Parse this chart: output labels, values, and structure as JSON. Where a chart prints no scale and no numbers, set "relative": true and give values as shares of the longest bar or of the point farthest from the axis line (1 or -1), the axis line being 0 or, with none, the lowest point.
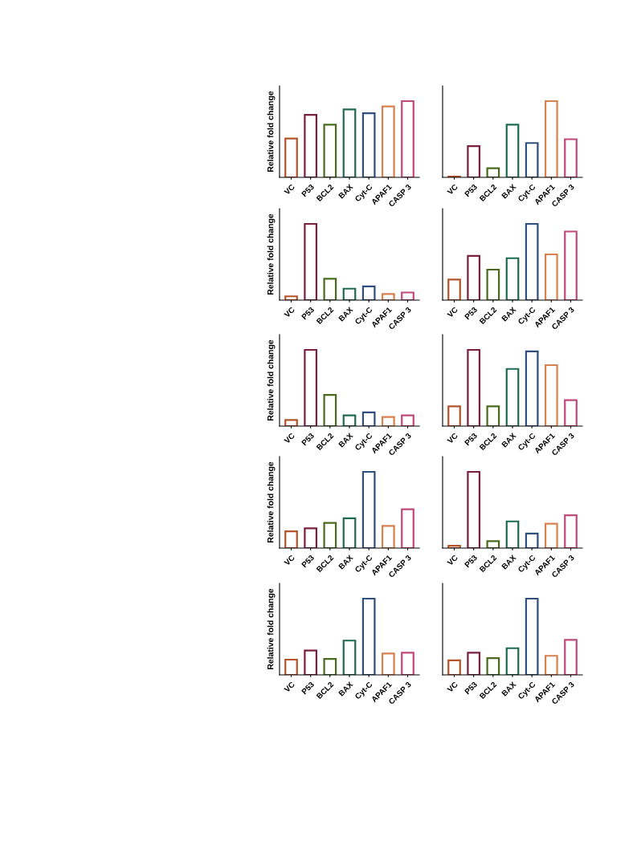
{
  "chart_data": [
    {
      "type": "bar",
      "relative": true,
      "ylabel": "Relative fold change",
      "categories": [
        "VC",
        "P53",
        "BCL2",
        "BAX",
        "Cyt-C",
        "APAF1",
        "CASP 3"
      ],
      "values": [
        0.51,
        0.82,
        0.69,
        0.89,
        0.84,
        0.93,
        1
      ],
      "colors": [
        "#b5542a",
        "#7b1f3f",
        "#4a6b1f",
        "#1f6b4f",
        "#2f4f7f",
        "#d9804f",
        "#c04a7a"
      ]
    },
    {
      "type": "bar",
      "relative": true,
      "categories": [
        "VC",
        "P53",
        "BCL2",
        "BAX",
        "Cyt-C",
        "APAF1",
        "CASP 3"
      ],
      "values": [
        0.01,
        0.41,
        0.12,
        0.69,
        0.45,
        1,
        0.5
      ],
      "colors": [
        "#b5542a",
        "#7b1f3f",
        "#4a6b1f",
        "#1f6b4f",
        "#2f4f7f",
        "#d9804f",
        "#c04a7a"
      ]
    },
    {
      "type": "bar",
      "relative": true,
      "ylabel": "Relative fold change",
      "categories": [
        "VC",
        "P53",
        "BCL2",
        "BAX",
        "Cyt-C",
        "APAF1",
        "CASP 3"
      ],
      "values": [
        0.05,
        1,
        0.28,
        0.15,
        0.18,
        0.08,
        0.1
      ],
      "colors": [
        "#b5542a",
        "#7b1f3f",
        "#4a6b1f",
        "#1f6b4f",
        "#2f4f7f",
        "#d9804f",
        "#c04a7a"
      ]
    },
    {
      "type": "bar",
      "relative": true,
      "categories": [
        "VC",
        "P53",
        "BCL2",
        "BAX",
        "Cyt-C",
        "APAF1",
        "CASP 3"
      ],
      "values": [
        0.27,
        0.58,
        0.4,
        0.55,
        1,
        0.6,
        0.9
      ],
      "colors": [
        "#b5542a",
        "#7b1f3f",
        "#4a6b1f",
        "#1f6b4f",
        "#2f4f7f",
        "#d9804f",
        "#c04a7a"
      ]
    },
    {
      "type": "bar",
      "relative": true,
      "ylabel": "Relative fold change",
      "categories": [
        "VC",
        "P53",
        "BCL2",
        "BAX",
        "Cyt-C",
        "APAF1",
        "CASP 3"
      ],
      "values": [
        0.08,
        1,
        0.41,
        0.14,
        0.18,
        0.12,
        0.14
      ],
      "colors": [
        "#b5542a",
        "#7b1f3f",
        "#4a6b1f",
        "#1f6b4f",
        "#2f4f7f",
        "#d9804f",
        "#c04a7a"
      ]
    },
    {
      "type": "bar",
      "relative": true,
      "categories": [
        "VC",
        "P53",
        "BCL2",
        "BAX",
        "Cyt-C",
        "APAF1",
        "CASP 3"
      ],
      "values": [
        0.26,
        1,
        0.26,
        0.75,
        0.98,
        0.8,
        0.34
      ],
      "colors": [
        "#b5542a",
        "#7b1f3f",
        "#4a6b1f",
        "#1f6b4f",
        "#2f4f7f",
        "#d9804f",
        "#c04a7a"
      ]
    },
    {
      "type": "bar",
      "relative": true,
      "ylabel": "Relative fold change",
      "categories": [
        "VC",
        "P53",
        "BCL2",
        "BAX",
        "Cyt-C",
        "APAF1",
        "CASP 3"
      ],
      "values": [
        0.22,
        0.26,
        0.33,
        0.39,
        1,
        0.29,
        0.51
      ],
      "colors": [
        "#b5542a",
        "#7b1f3f",
        "#4a6b1f",
        "#1f6b4f",
        "#2f4f7f",
        "#d9804f",
        "#c04a7a"
      ]
    },
    {
      "type": "bar",
      "relative": true,
      "categories": [
        "VC",
        "P53",
        "BCL2",
        "BAX",
        "Cyt-C",
        "APAF1",
        "CASP 3"
      ],
      "values": [
        0.03,
        1,
        0.09,
        0.35,
        0.19,
        0.32,
        0.43
      ],
      "colors": [
        "#b5542a",
        "#7b1f3f",
        "#4a6b1f",
        "#1f6b4f",
        "#2f4f7f",
        "#d9804f",
        "#c04a7a"
      ]
    },
    {
      "type": "bar",
      "relative": true,
      "ylabel": "Relative fold change",
      "categories": [
        "VC",
        "P53",
        "BCL2",
        "BAX",
        "Cyt-C",
        "APAF1",
        "CASP 3"
      ],
      "values": [
        0.2,
        0.32,
        0.21,
        0.45,
        1,
        0.28,
        0.29
      ],
      "colors": [
        "#b5542a",
        "#7b1f3f",
        "#4a6b1f",
        "#1f6b4f",
        "#2f4f7f",
        "#d9804f",
        "#c04a7a"
      ]
    },
    {
      "type": "bar",
      "relative": true,
      "categories": [
        "VC",
        "P53",
        "BCL2",
        "BAX",
        "Cyt-C",
        "APAF1",
        "CASP 3"
      ],
      "values": [
        0.19,
        0.29,
        0.22,
        0.35,
        1,
        0.25,
        0.46
      ],
      "colors": [
        "#b5542a",
        "#7b1f3f",
        "#4a6b1f",
        "#1f6b4f",
        "#2f4f7f",
        "#d9804f",
        "#c04a7a"
      ]
    }
  ]
}
